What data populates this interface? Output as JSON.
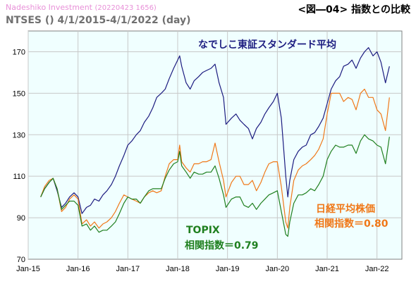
{
  "header": {
    "brand": "Nadeshiko Investment",
    "stamp": "(20220423 1656)",
    "title": "<図―04> 指数との比較",
    "subtitle": "NTSES () 4/1/2015-4/1/2022 (day)"
  },
  "annotations": {
    "nadeshiko": "なでしこ東証スタンダード平均",
    "topix_name": "TOPIX",
    "topix_corr": "相関指数＝0.79",
    "nikkei_name": "日経平均株価",
    "nikkei_corr": "相関指数＝0.80"
  },
  "colors": {
    "nadeshiko": "#1c1c80",
    "nikkei": "#f07818",
    "topix": "#208020",
    "plot_bg": "#f0ffff",
    "topix_label": "#208020",
    "nikkei_label": "#f07818",
    "nadeshiko_label": "#1c1c80"
  },
  "chart_data": {
    "type": "line",
    "xlabel": "",
    "ylabel": "",
    "ylim": [
      70,
      180
    ],
    "yticks": [
      70,
      90,
      110,
      130,
      150,
      170
    ],
    "x_range": [
      2015.0,
      2022.5
    ],
    "xtick_labels": [
      "Jan-15",
      "Jan-16",
      "Jan-17",
      "Jan-18",
      "Jan-19",
      "Jan-20",
      "Jan-21",
      "Jan-22"
    ],
    "xtick_pos": [
      2015.0,
      2016.0,
      2017.0,
      2018.0,
      2019.0,
      2020.0,
      2021.0,
      2022.0
    ],
    "grid": true,
    "series": [
      {
        "key": "nadeshiko",
        "x": [
          2015.25,
          2015.33,
          2015.42,
          2015.5,
          2015.58,
          2015.67,
          2015.75,
          2015.83,
          2015.92,
          2016.0,
          2016.08,
          2016.17,
          2016.25,
          2016.33,
          2016.42,
          2016.5,
          2016.58,
          2016.67,
          2016.75,
          2016.83,
          2016.92,
          2017.0,
          2017.08,
          2017.17,
          2017.25,
          2017.33,
          2017.42,
          2017.5,
          2017.58,
          2017.67,
          2017.75,
          2017.83,
          2017.92,
          2018.0,
          2018.04,
          2018.08,
          2018.17,
          2018.25,
          2018.33,
          2018.42,
          2018.5,
          2018.58,
          2018.67,
          2018.75,
          2018.83,
          2018.92,
          2018.97,
          2019.08,
          2019.17,
          2019.25,
          2019.33,
          2019.42,
          2019.5,
          2019.58,
          2019.67,
          2019.75,
          2019.83,
          2019.92,
          2020.0,
          2020.08,
          2020.17,
          2020.21,
          2020.25,
          2020.33,
          2020.42,
          2020.5,
          2020.58,
          2020.67,
          2020.75,
          2020.83,
          2020.92,
          2021.0,
          2021.08,
          2021.17,
          2021.25,
          2021.33,
          2021.42,
          2021.5,
          2021.58,
          2021.67,
          2021.75,
          2021.83,
          2021.92,
          2022.0,
          2022.08,
          2022.17,
          2022.25
        ],
        "y": [
          100,
          104,
          107,
          109,
          103,
          95,
          97,
          100,
          102,
          100,
          92,
          95,
          96,
          99,
          98,
          101,
          103,
          106,
          110,
          115,
          120,
          125,
          127,
          130,
          132,
          136,
          139,
          143,
          148,
          150,
          152,
          157,
          162,
          166,
          168,
          163,
          155,
          152,
          156,
          158,
          160,
          161,
          162,
          164,
          155,
          148,
          135,
          138,
          140,
          137,
          135,
          133,
          128,
          133,
          136,
          140,
          143,
          146,
          150,
          138,
          110,
          100,
          108,
          118,
          122,
          124,
          125,
          130,
          131,
          134,
          138,
          145,
          152,
          156,
          158,
          163,
          164,
          166,
          162,
          167,
          170,
          172,
          168,
          170,
          165,
          155,
          163
        ]
      },
      {
        "key": "nikkei",
        "x": [
          2015.25,
          2015.33,
          2015.42,
          2015.5,
          2015.58,
          2015.67,
          2015.75,
          2015.83,
          2015.92,
          2016.0,
          2016.08,
          2016.17,
          2016.25,
          2016.33,
          2016.42,
          2016.5,
          2016.58,
          2016.67,
          2016.75,
          2016.83,
          2016.92,
          2017.0,
          2017.08,
          2017.17,
          2017.25,
          2017.33,
          2017.42,
          2017.5,
          2017.58,
          2017.67,
          2017.75,
          2017.83,
          2017.92,
          2018.0,
          2018.04,
          2018.08,
          2018.17,
          2018.25,
          2018.33,
          2018.42,
          2018.5,
          2018.58,
          2018.67,
          2018.75,
          2018.83,
          2018.92,
          2018.97,
          2019.08,
          2019.17,
          2019.25,
          2019.33,
          2019.42,
          2019.5,
          2019.58,
          2019.67,
          2019.75,
          2019.83,
          2019.92,
          2020.0,
          2020.08,
          2020.17,
          2020.21,
          2020.25,
          2020.33,
          2020.42,
          2020.5,
          2020.58,
          2020.67,
          2020.75,
          2020.83,
          2020.92,
          2021.0,
          2021.08,
          2021.17,
          2021.25,
          2021.33,
          2021.42,
          2021.5,
          2021.58,
          2021.67,
          2021.75,
          2021.83,
          2021.92,
          2022.0,
          2022.08,
          2022.17,
          2022.25
        ],
        "y": [
          100,
          105,
          108,
          109,
          104,
          93,
          95,
          99,
          101,
          99,
          87,
          89,
          86,
          88,
          85,
          87,
          88,
          90,
          93,
          97,
          101,
          100,
          99,
          98,
          97,
          100,
          102,
          103,
          102,
          103,
          110,
          116,
          118,
          118,
          125,
          117,
          114,
          112,
          116,
          116,
          117,
          117,
          118,
          126,
          117,
          108,
          100,
          107,
          110,
          110,
          106,
          106,
          108,
          103,
          107,
          112,
          116,
          117,
          117,
          105,
          88,
          85,
          95,
          108,
          113,
          115,
          116,
          118,
          120,
          123,
          128,
          140,
          150,
          150,
          150,
          146,
          148,
          147,
          142,
          150,
          152,
          148,
          148,
          142,
          140,
          132,
          148
        ]
      },
      {
        "key": "topix",
        "x": [
          2015.25,
          2015.33,
          2015.42,
          2015.5,
          2015.58,
          2015.67,
          2015.75,
          2015.83,
          2015.92,
          2016.0,
          2016.08,
          2016.17,
          2016.25,
          2016.33,
          2016.42,
          2016.5,
          2016.58,
          2016.67,
          2016.75,
          2016.83,
          2016.92,
          2017.0,
          2017.08,
          2017.17,
          2017.25,
          2017.33,
          2017.42,
          2017.5,
          2017.58,
          2017.67,
          2017.75,
          2017.83,
          2017.92,
          2018.0,
          2018.04,
          2018.08,
          2018.17,
          2018.25,
          2018.33,
          2018.42,
          2018.5,
          2018.58,
          2018.67,
          2018.75,
          2018.83,
          2018.92,
          2018.97,
          2019.08,
          2019.17,
          2019.25,
          2019.33,
          2019.42,
          2019.5,
          2019.58,
          2019.67,
          2019.75,
          2019.83,
          2019.92,
          2020.0,
          2020.08,
          2020.17,
          2020.21,
          2020.25,
          2020.33,
          2020.42,
          2020.5,
          2020.58,
          2020.67,
          2020.75,
          2020.83,
          2020.92,
          2021.0,
          2021.08,
          2021.17,
          2021.25,
          2021.33,
          2021.42,
          2021.5,
          2021.58,
          2021.67,
          2021.75,
          2021.83,
          2021.92,
          2022.0,
          2022.08,
          2022.17,
          2022.25
        ],
        "y": [
          100,
          104,
          107,
          109,
          104,
          94,
          96,
          98,
          98,
          96,
          86,
          87,
          84,
          86,
          83,
          84,
          84,
          86,
          88,
          92,
          97,
          100,
          99,
          99,
          97,
          100,
          103,
          104,
          104,
          104,
          109,
          113,
          116,
          117,
          122,
          115,
          112,
          109,
          112,
          111,
          111,
          112,
          112,
          115,
          109,
          101,
          95,
          99,
          100,
          100,
          96,
          95,
          97,
          94,
          97,
          99,
          101,
          102,
          103,
          93,
          82,
          81,
          88,
          97,
          101,
          101,
          102,
          104,
          103,
          106,
          110,
          118,
          122,
          125,
          124,
          124,
          125,
          125,
          121,
          127,
          130,
          128,
          127,
          125,
          124,
          116,
          129
        ]
      }
    ]
  }
}
